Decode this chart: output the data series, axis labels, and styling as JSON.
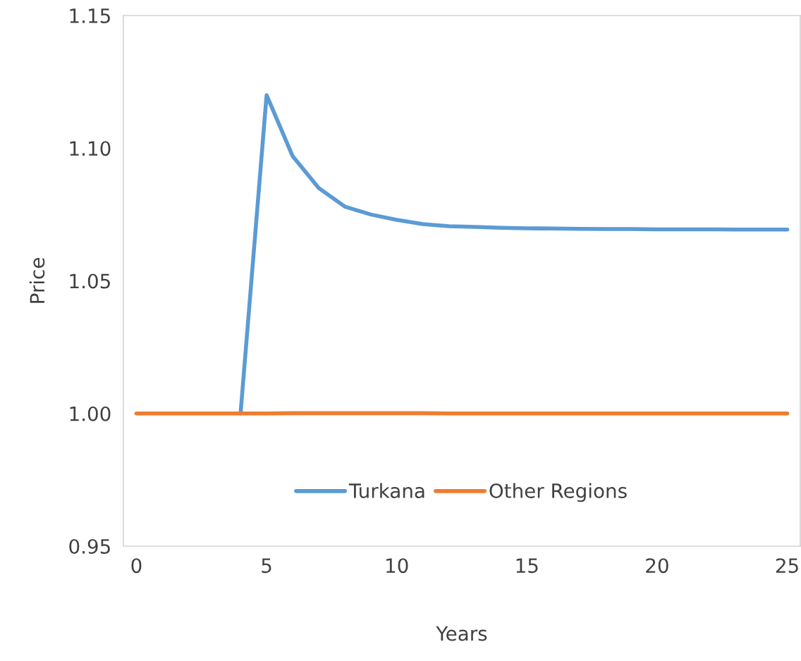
{
  "chart_data": {
    "type": "line",
    "xlabel": "Years",
    "ylabel": "Price",
    "x": [
      0,
      1,
      2,
      3,
      4,
      5,
      6,
      7,
      8,
      9,
      10,
      11,
      12,
      13,
      14,
      15,
      16,
      17,
      18,
      19,
      20,
      21,
      22,
      23,
      24,
      25
    ],
    "series": [
      {
        "name": "Turkana",
        "color": "#5b9bd5",
        "values": [
          null,
          null,
          null,
          null,
          1.0,
          1.12,
          1.097,
          1.085,
          1.078,
          1.075,
          1.073,
          1.0714,
          1.0706,
          1.0703,
          1.07,
          1.0698,
          1.0697,
          1.0696,
          1.0695,
          1.0695,
          1.0694,
          1.0694,
          1.0694,
          1.0693,
          1.0693,
          1.0693
        ]
      },
      {
        "name": "Other Regions",
        "color": "#ed7d31",
        "values": [
          1.0,
          1.0,
          1.0,
          1.0,
          1.0,
          1.0,
          1.0001,
          1.0001,
          1.0001,
          1.0001,
          1.0001,
          1.0001,
          1.0,
          1.0,
          1.0,
          1.0,
          1.0,
          1.0,
          1.0,
          1.0,
          1.0,
          1.0,
          1.0,
          1.0,
          1.0,
          1.0
        ]
      }
    ],
    "xlim": [
      -0.5,
      25.5
    ],
    "xticks": [
      0,
      5,
      10,
      15,
      20,
      25
    ],
    "ylim": [
      0.95,
      1.15
    ],
    "yticks": [
      {
        "value": 0.95,
        "label": "0.95"
      },
      {
        "value": 1.0,
        "label": "1.00"
      },
      {
        "value": 1.05,
        "label": "1.05"
      },
      {
        "value": 1.1,
        "label": "1.10"
      },
      {
        "value": 1.15,
        "label": "1.15"
      }
    ],
    "grid": false,
    "legend": "bottom",
    "marker": "none",
    "line_style": "solid"
  }
}
